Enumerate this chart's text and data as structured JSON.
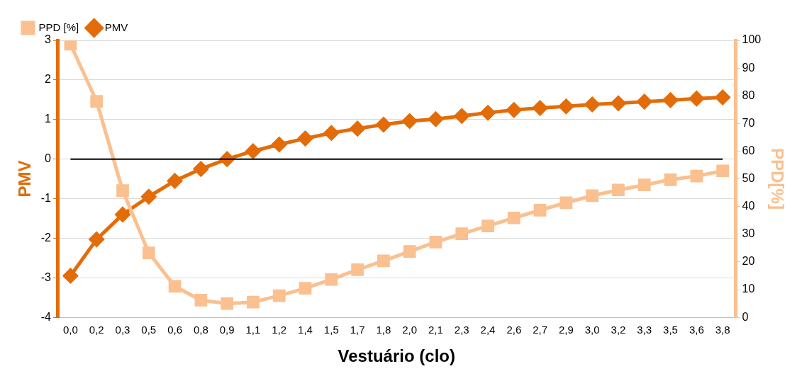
{
  "chart_data": {
    "type": "line",
    "xlabel": "Vestuário (clo)",
    "ylabel": "PMV",
    "y2label": "PPD[%]",
    "categories": [
      "0,0",
      "0,2",
      "0,3",
      "0,5",
      "0,6",
      "0,8",
      "0,9",
      "1,1",
      "1,2",
      "1,4",
      "1,5",
      "1,7",
      "1,8",
      "2,0",
      "2,1",
      "2,3",
      "2,4",
      "2,6",
      "2,7",
      "2,9",
      "3,0",
      "3,2",
      "3,3",
      "3,5",
      "3,6",
      "3,8"
    ],
    "series": [
      {
        "name": "PPD [%]",
        "color": "#fac090",
        "axis": "y2",
        "marker": "square",
        "values": [
          98.6,
          78,
          45.8,
          23.3,
          11.2,
          6.2,
          5,
          5.5,
          7.8,
          10.5,
          13.7,
          17.2,
          20.4,
          23.8,
          27.2,
          30.2,
          33,
          35.9,
          38.7,
          41.4,
          43.9,
          46,
          47.8,
          49.7,
          51,
          52.9
        ]
      },
      {
        "name": "PMV",
        "color": "#e36c09",
        "marker": "diamond",
        "values": [
          -2.95,
          -2.03,
          -1.4,
          -0.95,
          -0.55,
          -0.25,
          0,
          0.2,
          0.37,
          0.52,
          0.66,
          0.77,
          0.87,
          0.96,
          1.01,
          1.09,
          1.17,
          1.24,
          1.29,
          1.33,
          1.38,
          1.41,
          1.45,
          1.49,
          1.53,
          1.56
        ]
      }
    ],
    "ylim": [
      -4,
      3
    ],
    "yticks": [
      -4,
      -3,
      -2,
      -1,
      0,
      1,
      2,
      3
    ],
    "y2lim": [
      0,
      100
    ],
    "y2ticks": [
      0,
      10,
      20,
      30,
      40,
      50,
      60,
      70,
      80,
      90,
      100
    ],
    "ref_lines": [
      {
        "axis": "y",
        "value": 0,
        "color": "#000000"
      }
    ],
    "grid": "y",
    "legend": "top left"
  }
}
